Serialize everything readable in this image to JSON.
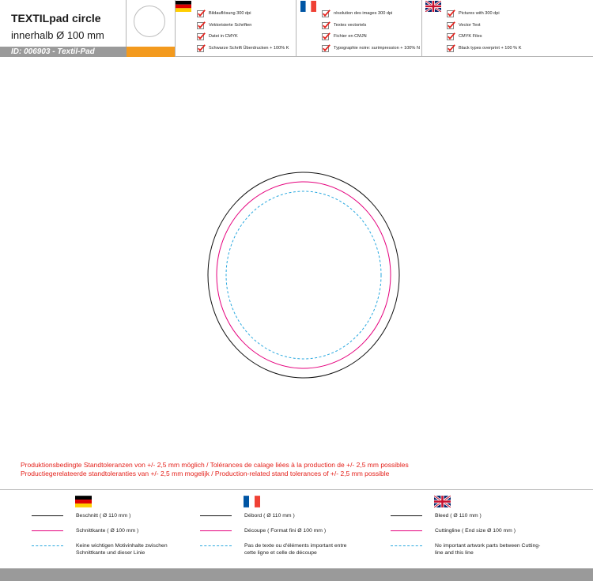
{
  "header": {
    "title": "TEXTILpad circle",
    "subtitle": "innerhalb Ø 100 mm",
    "id_label": "ID: 006903  -  Textil-Pad",
    "accent_color": "#f39a1e"
  },
  "languages": {
    "de": {
      "flag": "germany-flag",
      "items": [
        "Bildauflösung 300 dpi",
        "Vektorisierte Schriften",
        "Datei in CMYK",
        "Schwarze Schrift Überdrucken + 100% K"
      ]
    },
    "fr": {
      "flag": "france-flag",
      "items": [
        "résolution des images 300 dpi",
        "Textes vectoriels",
        "Fichier en CMJN",
        "Typographie noire: surimpression + 100% N"
      ]
    },
    "en": {
      "flag": "uk-flag",
      "items": [
        "Pictures with 300 dpi",
        "Vector Text",
        "CMYK Files",
        "Black types overprint + 100 % K"
      ]
    }
  },
  "tolerance": {
    "line1": "Produktionsbedingte Standtoleranzen von +/- 2,5 mm möglich / Tolérances de calage liées à la production de +/- 2,5 mm possibles",
    "line2": "Productiegerelateerde standtoleranties van +/- 2,5 mm mogelijk / Production-related stand tolerances of +/- 2,5 mm possible",
    "color": "#e4211b"
  },
  "legend": {
    "de": {
      "bleed": "Beschnitt ( Ø 110 mm )",
      "cut": "Schnittkante ( Ø 100 mm )",
      "safe_1": "Keine wichtigen Motivinhalte zwischen",
      "safe_2": "Schnittkante und dieser Linie"
    },
    "fr": {
      "bleed": "Débord ( Ø 110 mm )",
      "cut": "Découpe  ( Format fini Ø 100 mm  )",
      "safe_1": "Pas de texte ou d'éléments important entre",
      "safe_2": "cette ligne et celle de découpe"
    },
    "en": {
      "bleed": "Bleed ( Ø 110 mm )",
      "cut": "Cuttingline ( End size Ø 100 mm )",
      "safe_1": "No important artwork parts between Cutting-",
      "safe_2": "line and this line"
    }
  },
  "colors": {
    "bleed_line": "#111111",
    "cut_line": "#e5007d",
    "safe_line": "#29a8df"
  }
}
